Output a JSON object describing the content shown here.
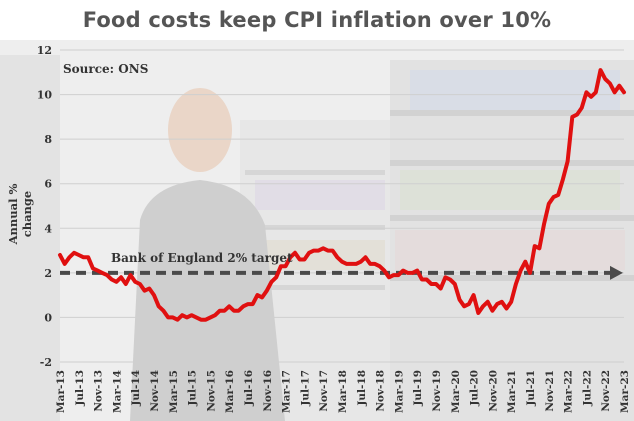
{
  "chart_data": {
    "type": "line",
    "title": "Food costs keep CPI inflation over 10%",
    "source": "Source: ONS",
    "ylabel": "Annual % change",
    "xlabel": "",
    "ylim": [
      -2,
      12
    ],
    "yticks": [
      -2,
      0,
      2,
      4,
      6,
      8,
      10,
      12
    ],
    "xlim": [
      0,
      120
    ],
    "grid": "horizontal",
    "line_color": "#e01010",
    "xtick_labels": [
      {
        "x": 0,
        "label": "Mar-13"
      },
      {
        "x": 4,
        "label": "Jul-13"
      },
      {
        "x": 8,
        "label": "Nov-13"
      },
      {
        "x": 12,
        "label": "Mar-14"
      },
      {
        "x": 16,
        "label": "Jul-14"
      },
      {
        "x": 20,
        "label": "Nov-14"
      },
      {
        "x": 24,
        "label": "Mar-15"
      },
      {
        "x": 28,
        "label": "Jul-15"
      },
      {
        "x": 32,
        "label": "Nov-15"
      },
      {
        "x": 36,
        "label": "Mar-16"
      },
      {
        "x": 40,
        "label": "Jul-16"
      },
      {
        "x": 44,
        "label": "Nov-16"
      },
      {
        "x": 48,
        "label": "Mar-17"
      },
      {
        "x": 52,
        "label": "Jul-17"
      },
      {
        "x": 56,
        "label": "Nov-17"
      },
      {
        "x": 60,
        "label": "Mar-18"
      },
      {
        "x": 64,
        "label": "Jul-18"
      },
      {
        "x": 68,
        "label": "Nov-18"
      },
      {
        "x": 72,
        "label": "Mar-19"
      },
      {
        "x": 76,
        "label": "Jul-19"
      },
      {
        "x": 80,
        "label": "Nov-19"
      },
      {
        "x": 84,
        "label": "Mar-20"
      },
      {
        "x": 88,
        "label": "Jul-20"
      },
      {
        "x": 92,
        "label": "Nov-20"
      },
      {
        "x": 96,
        "label": "Mar-21"
      },
      {
        "x": 100,
        "label": "Jul-21"
      },
      {
        "x": 104,
        "label": "Nov-21"
      },
      {
        "x": 108,
        "label": "Mar-22"
      },
      {
        "x": 112,
        "label": "Jul-22"
      },
      {
        "x": 116,
        "label": "Nov-22"
      },
      {
        "x": 120,
        "label": "Mar-23"
      }
    ],
    "series": [
      {
        "values": [
          [
            0,
            2.8
          ],
          [
            1,
            2.4
          ],
          [
            2,
            2.7
          ],
          [
            3,
            2.9
          ],
          [
            4,
            2.8
          ],
          [
            5,
            2.7
          ],
          [
            6,
            2.7
          ],
          [
            7,
            2.2
          ],
          [
            8,
            2.1
          ],
          [
            9,
            2.0
          ],
          [
            10,
            1.9
          ],
          [
            11,
            1.7
          ],
          [
            12,
            1.6
          ],
          [
            13,
            1.8
          ],
          [
            14,
            1.5
          ],
          [
            15,
            1.9
          ],
          [
            16,
            1.6
          ],
          [
            17,
            1.5
          ],
          [
            18,
            1.2
          ],
          [
            19,
            1.3
          ],
          [
            20,
            1.0
          ],
          [
            21,
            0.5
          ],
          [
            22,
            0.3
          ],
          [
            23,
            0.0
          ],
          [
            24,
            0.0
          ],
          [
            25,
            -0.1
          ],
          [
            26,
            0.1
          ],
          [
            27,
            0.0
          ],
          [
            28,
            0.1
          ],
          [
            29,
            0.0
          ],
          [
            30,
            -0.1
          ],
          [
            31,
            -0.1
          ],
          [
            32,
            0.0
          ],
          [
            33,
            0.1
          ],
          [
            34,
            0.3
          ],
          [
            35,
            0.3
          ],
          [
            36,
            0.5
          ],
          [
            37,
            0.3
          ],
          [
            38,
            0.3
          ],
          [
            39,
            0.5
          ],
          [
            40,
            0.6
          ],
          [
            41,
            0.6
          ],
          [
            42,
            1.0
          ],
          [
            43,
            0.9
          ],
          [
            44,
            1.2
          ],
          [
            45,
            1.6
          ],
          [
            46,
            1.8
          ],
          [
            47,
            2.3
          ],
          [
            48,
            2.3
          ],
          [
            49,
            2.7
          ],
          [
            50,
            2.9
          ],
          [
            51,
            2.6
          ],
          [
            52,
            2.6
          ],
          [
            53,
            2.9
          ],
          [
            54,
            3.0
          ],
          [
            55,
            3.0
          ],
          [
            56,
            3.1
          ],
          [
            57,
            3.0
          ],
          [
            58,
            3.0
          ],
          [
            59,
            2.7
          ],
          [
            60,
            2.5
          ],
          [
            61,
            2.4
          ],
          [
            62,
            2.4
          ],
          [
            63,
            2.4
          ],
          [
            64,
            2.5
          ],
          [
            65,
            2.7
          ],
          [
            66,
            2.4
          ],
          [
            67,
            2.4
          ],
          [
            68,
            2.3
          ],
          [
            69,
            2.1
          ],
          [
            70,
            1.8
          ],
          [
            71,
            1.9
          ],
          [
            72,
            1.9
          ],
          [
            73,
            2.1
          ],
          [
            74,
            2.0
          ],
          [
            75,
            2.0
          ],
          [
            76,
            2.1
          ],
          [
            77,
            1.7
          ],
          [
            78,
            1.7
          ],
          [
            79,
            1.5
          ],
          [
            80,
            1.5
          ],
          [
            81,
            1.3
          ],
          [
            82,
            1.8
          ],
          [
            83,
            1.7
          ],
          [
            84,
            1.5
          ],
          [
            85,
            0.8
          ],
          [
            86,
            0.5
          ],
          [
            87,
            0.6
          ],
          [
            88,
            1.0
          ],
          [
            89,
            0.2
          ],
          [
            90,
            0.5
          ],
          [
            91,
            0.7
          ],
          [
            92,
            0.3
          ],
          [
            93,
            0.6
          ],
          [
            94,
            0.7
          ],
          [
            95,
            0.4
          ],
          [
            96,
            0.7
          ],
          [
            97,
            1.5
          ],
          [
            98,
            2.1
          ],
          [
            99,
            2.5
          ],
          [
            100,
            2.0
          ],
          [
            101,
            3.2
          ],
          [
            102,
            3.1
          ],
          [
            103,
            4.2
          ],
          [
            104,
            5.1
          ],
          [
            105,
            5.4
          ],
          [
            106,
            5.5
          ],
          [
            107,
            6.2
          ],
          [
            108,
            7.0
          ],
          [
            109,
            9.0
          ],
          [
            110,
            9.1
          ],
          [
            111,
            9.4
          ],
          [
            112,
            10.1
          ],
          [
            113,
            9.9
          ],
          [
            114,
            10.1
          ],
          [
            115,
            11.1
          ],
          [
            116,
            10.7
          ],
          [
            117,
            10.5
          ],
          [
            118,
            10.1
          ],
          [
            119,
            10.4
          ],
          [
            120,
            10.1
          ]
        ]
      }
    ],
    "annotations": [
      {
        "type": "reference-line",
        "y": 2,
        "label": "Bank of England 2% target"
      }
    ]
  }
}
